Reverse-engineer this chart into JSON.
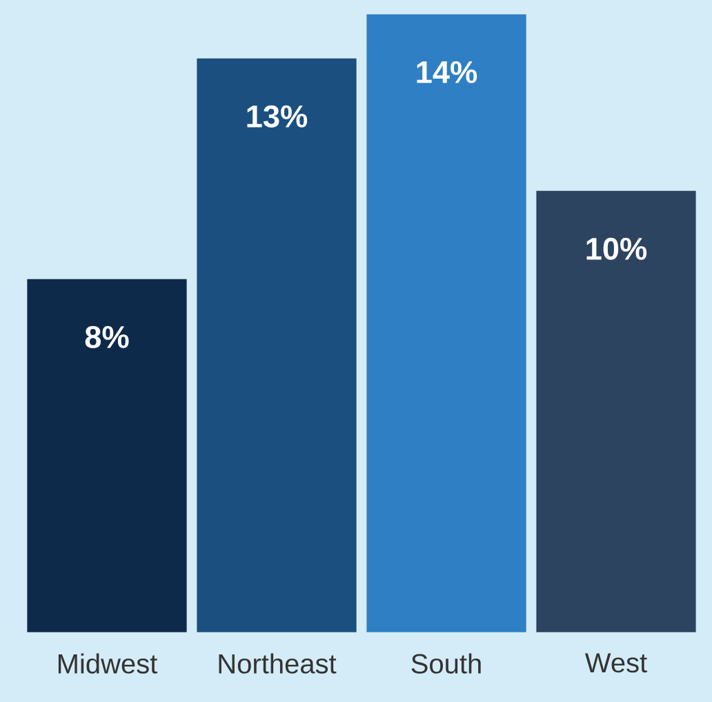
{
  "chart_data": {
    "type": "bar",
    "categories": [
      "Midwest",
      "Northeast",
      "South",
      "West"
    ],
    "values": [
      8,
      13,
      14,
      10
    ],
    "colors": [
      "#0d2a4a",
      "#1a4f80",
      "#2e7fc4",
      "#2d4460"
    ],
    "value_labels": [
      "8%",
      "13%",
      "14%",
      "10%"
    ]
  }
}
